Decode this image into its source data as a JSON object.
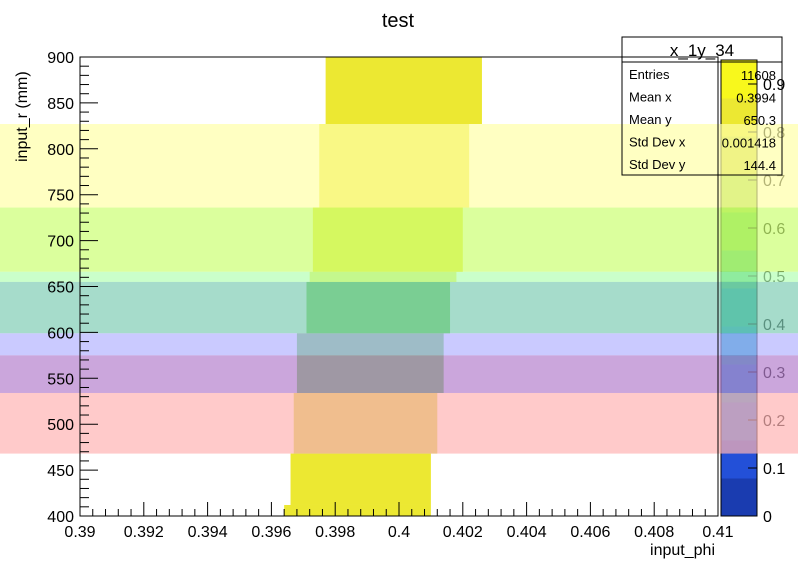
{
  "chart_data": {
    "type": "heatmap",
    "title": "test",
    "xlabel": "input_phi",
    "ylabel": "input_r (mm)",
    "xlim": [
      0.39,
      0.41
    ],
    "ylim": [
      400,
      900
    ],
    "x_ticks": [
      "0.39",
      "0.392",
      "0.394",
      "0.396",
      "0.398",
      "0.4",
      "0.402",
      "0.404",
      "0.406",
      "0.408",
      "0.41"
    ],
    "y_ticks": [
      "400",
      "450",
      "500",
      "550",
      "600",
      "650",
      "700",
      "750",
      "800",
      "850",
      "900"
    ],
    "z_ticks": [
      "0",
      "0.1",
      "0.2",
      "0.3",
      "0.4",
      "0.5",
      "0.6",
      "0.7",
      "0.8",
      "0.9"
    ],
    "zlim": [
      0,
      0.95
    ],
    "bins": [
      {
        "r0": 400,
        "r1": 412,
        "phi0": 0.3964,
        "phi1": 0.401,
        "z": 0.85
      },
      {
        "r0": 412,
        "r1": 468,
        "phi0": 0.3966,
        "phi1": 0.401,
        "z": 0.85
      },
      {
        "r0": 468,
        "r1": 534,
        "phi0": 0.3967,
        "phi1": 0.4012,
        "z": 0.75
      },
      {
        "r0": 534,
        "r1": 575,
        "phi0": 0.3968,
        "phi1": 0.4014,
        "z": 0.6
      },
      {
        "r0": 575,
        "r1": 599,
        "phi0": 0.3968,
        "phi1": 0.4014,
        "z": 0.6
      },
      {
        "r0": 599,
        "r1": 655,
        "phi0": 0.3971,
        "phi1": 0.4016,
        "z": 0.62
      },
      {
        "r0": 655,
        "r1": 666,
        "phi0": 0.3972,
        "phi1": 0.4018,
        "z": 0.85
      },
      {
        "r0": 666,
        "r1": 736,
        "phi0": 0.3973,
        "phi1": 0.402,
        "z": 0.85
      },
      {
        "r0": 736,
        "r1": 827,
        "phi0": 0.3975,
        "phi1": 0.4022,
        "z": 0.85
      },
      {
        "r0": 827,
        "r1": 900,
        "phi0": 0.3977,
        "phi1": 0.4026,
        "z": 0.85
      }
    ],
    "overlay_bands": [
      {
        "r0": 736,
        "r1": 827,
        "color": "#ffffa8"
      },
      {
        "r0": 666,
        "r1": 736,
        "color": "#ccff73"
      },
      {
        "r0": 655,
        "r1": 666,
        "color": "#b3ffb3"
      },
      {
        "r0": 599,
        "r1": 655,
        "color": "#80cdb5"
      },
      {
        "r0": 575,
        "r1": 599,
        "color": "#b3b3ff"
      },
      {
        "r0": 534,
        "r1": 575,
        "color": "#b580cd"
      },
      {
        "r0": 468,
        "r1": 534,
        "color": "#ffb3b3"
      }
    ],
    "colorbar": [
      "#1a3cb0",
      "#2350d8",
      "#1e6fe0",
      "#1587d3",
      "#0d9fb7",
      "#12af93",
      "#3ac070",
      "#6ccf45",
      "#9fd63d",
      "#cbd636",
      "#ece832",
      "#f8f81c"
    ],
    "stats": {
      "name": "x_1y_34",
      "rows": [
        {
          "label": "Entries",
          "value": "11608"
        },
        {
          "label": "Mean x",
          "value": "0.3994"
        },
        {
          "label": "Mean y",
          "value": "650.3"
        },
        {
          "label": "Std Dev x",
          "value": "0.001418"
        },
        {
          "label": "Std Dev y",
          "value": "144.4"
        }
      ]
    }
  }
}
